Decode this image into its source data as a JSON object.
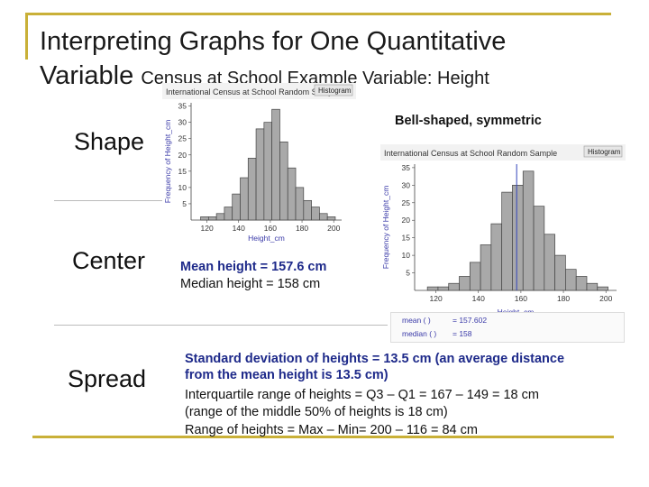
{
  "slide": {
    "title_line1": "Interpreting Graphs for One Quantitative",
    "title_line2_main": "Variable",
    "title_line2_small": "Census at School Example Variable:  Height",
    "rows": {
      "shape_label": "Shape",
      "center_label": "Center",
      "spread_label": "Spread"
    },
    "shape_text": "Bell-shaped, symmetric",
    "mean_text": "Mean height = 157.6 cm",
    "median_text": "Median height = 158 cm",
    "spread_lines": [
      "Standard deviation of heights = 13.5 cm (an average distance",
      "from the mean height is 13.5 cm)",
      "Interquartile range of heights = Q3 – Q1 = 167 – 149 = 18 cm",
      "(range of the middle 50% of heights is 18 cm)",
      "Range of heights = Max – Min= 200 – 116 = 84 cm"
    ],
    "legend": {
      "mean_label": "mean ( )",
      "mean_value": "= 157.602",
      "median_label": "median ( )",
      "median_value": "= 158"
    }
  },
  "chart_data": [
    {
      "type": "bar",
      "title": "International Census at School Random Sample",
      "button_label": "Histogram",
      "xlabel": "Height_cm",
      "ylabel": "Frequency of Height_cm",
      "bin_start": 116,
      "bin_width": 5,
      "values": [
        1,
        1,
        2,
        4,
        8,
        13,
        19,
        28,
        30,
        34,
        24,
        16,
        10,
        6,
        4,
        2,
        1
      ],
      "xticks": [
        120,
        140,
        160,
        180,
        200
      ],
      "yticks": [
        5,
        10,
        15,
        20,
        25,
        30,
        35
      ],
      "xlim": [
        110,
        205
      ],
      "ylim": [
        0,
        36
      ],
      "grid": false
    },
    {
      "type": "bar",
      "title": "International Census at School Random Sample",
      "button_label": "Histogram",
      "xlabel": "Height_cm",
      "ylabel": "Frequency of Height_cm",
      "bin_start": 116,
      "bin_width": 5,
      "values": [
        1,
        1,
        2,
        4,
        8,
        13,
        19,
        28,
        30,
        34,
        24,
        16,
        10,
        6,
        4,
        2,
        1
      ],
      "xticks": [
        120,
        140,
        160,
        180,
        200
      ],
      "yticks": [
        5,
        10,
        15,
        20,
        25,
        30,
        35
      ],
      "xlim": [
        110,
        205
      ],
      "ylim": [
        0,
        36
      ],
      "mean": 157.602,
      "median": 158,
      "grid": false
    }
  ]
}
